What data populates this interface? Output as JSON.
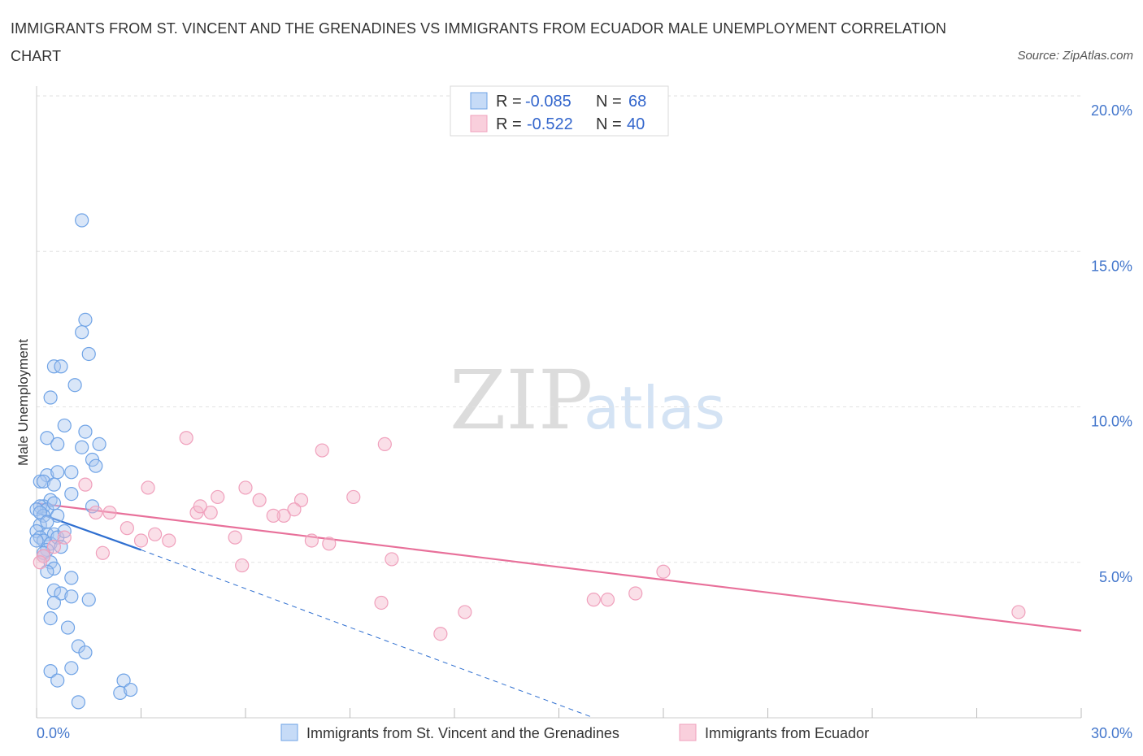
{
  "title": "IMMIGRANTS FROM ST. VINCENT AND THE GRENADINES VS IMMIGRANTS FROM ECUADOR MALE UNEMPLOYMENT CORRELATION CHART",
  "source": "Source: ZipAtlas.com",
  "watermark": {
    "zip": "ZIP",
    "atlas": "atlas"
  },
  "legend": {
    "r_label": "R =",
    "n_label": "N =",
    "rows": [
      {
        "r": "-0.085",
        "n": "68"
      },
      {
        "r": "-0.522",
        "n": "40"
      }
    ]
  },
  "chart_data": {
    "type": "scatter",
    "xlabel": "",
    "ylabel": "Male Unemployment",
    "xlim": [
      0,
      30
    ],
    "ylim": [
      0,
      20
    ],
    "x_tick_labels": [
      "0.0%",
      "30.0%"
    ],
    "y_ticks": [
      5,
      10,
      15,
      20
    ],
    "y_tick_labels": [
      "5.0%",
      "10.0%",
      "15.0%",
      "20.0%"
    ],
    "grid": true,
    "legend_position": "bottom",
    "colors": {
      "series1": "#6fa3e6",
      "series2": "#f0a0bc",
      "trend1": "#2f6fd0",
      "trend2": "#e8709a"
    },
    "series": [
      {
        "name": "Immigrants from St. Vincent and the Grenadines",
        "points": [
          [
            1.3,
            16.0
          ],
          [
            1.4,
            12.8
          ],
          [
            1.3,
            12.4
          ],
          [
            1.5,
            11.7
          ],
          [
            0.5,
            11.3
          ],
          [
            0.7,
            11.3
          ],
          [
            1.1,
            10.7
          ],
          [
            0.4,
            10.3
          ],
          [
            0.8,
            9.4
          ],
          [
            1.4,
            9.2
          ],
          [
            0.3,
            9.0
          ],
          [
            0.6,
            8.8
          ],
          [
            1.8,
            8.8
          ],
          [
            1.3,
            8.7
          ],
          [
            1.6,
            8.3
          ],
          [
            1.7,
            8.1
          ],
          [
            0.3,
            7.8
          ],
          [
            0.6,
            7.9
          ],
          [
            1.0,
            7.9
          ],
          [
            0.1,
            7.6
          ],
          [
            0.2,
            7.6
          ],
          [
            0.5,
            7.5
          ],
          [
            1.0,
            7.2
          ],
          [
            0.4,
            7.0
          ],
          [
            0.2,
            6.8
          ],
          [
            0.1,
            6.8
          ],
          [
            0.3,
            6.7
          ],
          [
            0.0,
            6.7
          ],
          [
            0.5,
            6.9
          ],
          [
            1.6,
            6.8
          ],
          [
            0.2,
            6.5
          ],
          [
            0.6,
            6.5
          ],
          [
            0.1,
            6.2
          ],
          [
            0.0,
            6.0
          ],
          [
            0.3,
            5.9
          ],
          [
            0.5,
            5.9
          ],
          [
            0.1,
            5.8
          ],
          [
            0.2,
            5.7
          ],
          [
            0.4,
            5.6
          ],
          [
            0.6,
            5.8
          ],
          [
            0.3,
            5.4
          ],
          [
            0.7,
            5.5
          ],
          [
            0.0,
            5.7
          ],
          [
            0.2,
            5.3
          ],
          [
            0.4,
            5.0
          ],
          [
            0.5,
            4.8
          ],
          [
            0.3,
            4.7
          ],
          [
            1.0,
            4.5
          ],
          [
            0.5,
            4.1
          ],
          [
            0.7,
            4.0
          ],
          [
            1.0,
            3.9
          ],
          [
            1.5,
            3.8
          ],
          [
            0.5,
            3.7
          ],
          [
            0.4,
            3.2
          ],
          [
            0.9,
            2.9
          ],
          [
            1.2,
            2.3
          ],
          [
            1.4,
            2.1
          ],
          [
            1.0,
            1.6
          ],
          [
            0.4,
            1.5
          ],
          [
            0.6,
            1.2
          ],
          [
            2.5,
            1.2
          ],
          [
            1.2,
            0.5
          ],
          [
            2.4,
            0.8
          ],
          [
            2.7,
            0.9
          ],
          [
            0.1,
            6.6
          ],
          [
            0.2,
            5.2
          ],
          [
            0.8,
            6.0
          ],
          [
            0.3,
            6.3
          ]
        ]
      },
      {
        "name": "Immigrants from Ecuador",
        "points": [
          [
            4.3,
            9.0
          ],
          [
            8.2,
            8.6
          ],
          [
            10.0,
            8.8
          ],
          [
            3.2,
            7.4
          ],
          [
            6.0,
            7.4
          ],
          [
            5.2,
            7.1
          ],
          [
            7.6,
            7.0
          ],
          [
            9.1,
            7.1
          ],
          [
            6.4,
            7.0
          ],
          [
            4.6,
            6.6
          ],
          [
            2.1,
            6.6
          ],
          [
            2.6,
            6.1
          ],
          [
            5.0,
            6.6
          ],
          [
            4.7,
            6.8
          ],
          [
            7.4,
            6.7
          ],
          [
            7.1,
            6.5
          ],
          [
            6.8,
            6.5
          ],
          [
            1.7,
            6.6
          ],
          [
            3.4,
            5.9
          ],
          [
            3.8,
            5.7
          ],
          [
            3.0,
            5.7
          ],
          [
            5.7,
            5.8
          ],
          [
            7.9,
            5.7
          ],
          [
            8.4,
            5.6
          ],
          [
            0.8,
            5.8
          ],
          [
            0.5,
            5.5
          ],
          [
            1.9,
            5.3
          ],
          [
            5.9,
            4.9
          ],
          [
            10.2,
            5.1
          ],
          [
            1.4,
            7.5
          ],
          [
            9.9,
            3.7
          ],
          [
            12.3,
            3.4
          ],
          [
            16.0,
            3.8
          ],
          [
            16.4,
            3.8
          ],
          [
            17.2,
            4.0
          ],
          [
            18.0,
            4.7
          ],
          [
            11.6,
            2.7
          ],
          [
            28.2,
            3.4
          ],
          [
            0.2,
            5.2
          ],
          [
            0.1,
            5.0
          ]
        ]
      }
    ],
    "trend_lines": [
      {
        "series": 0,
        "from": [
          0.0,
          6.6
        ],
        "to": [
          3.0,
          5.4
        ],
        "dashed_to": [
          16.0,
          0.0
        ]
      },
      {
        "series": 1,
        "from": [
          0.0,
          6.9
        ],
        "to": [
          30.0,
          2.8
        ]
      }
    ]
  }
}
